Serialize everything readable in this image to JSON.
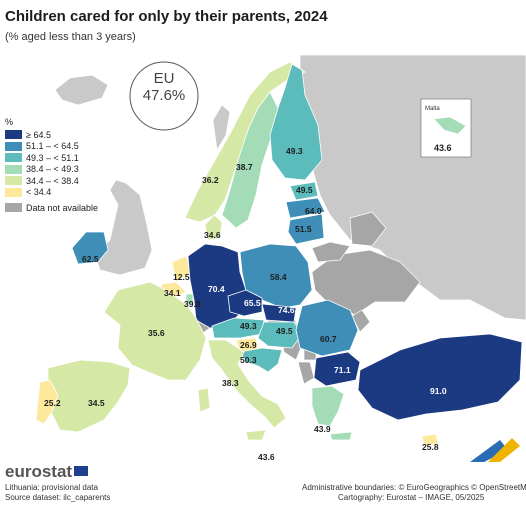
{
  "header": {
    "title": "Children cared for only by their parents, 2024",
    "subtitle": "(% aged less than 3 years)"
  },
  "eu": {
    "label": "EU",
    "value": "47.6%"
  },
  "legend": {
    "unit": "%",
    "classes": [
      {
        "label": "≥ 64.5",
        "color": "#1c3a82"
      },
      {
        "label": "51.1 – < 64.5",
        "color": "#3f8eb8"
      },
      {
        "label": "49.3 – < 51.1",
        "color": "#5cbcbc"
      },
      {
        "label": "38.4 – < 49.3",
        "color": "#a3dcb6"
      },
      {
        "label": "34.4 – < 38.4",
        "color": "#d6e8a6"
      },
      {
        "label": "< 34.4",
        "color": "#fde89c"
      }
    ],
    "not_available": {
      "label": "Data not available",
      "color": "#a6a6a6"
    }
  },
  "countries": [
    {
      "name": "Finland",
      "value": "49.3"
    },
    {
      "name": "Sweden",
      "value": "38.7"
    },
    {
      "name": "Norway",
      "value": "36.2"
    },
    {
      "name": "Estonia",
      "value": "49.5"
    },
    {
      "name": "Latvia",
      "value": "64.0"
    },
    {
      "name": "Lithuania",
      "value": "51.5"
    },
    {
      "name": "Denmark",
      "value": "34.6"
    },
    {
      "name": "Ireland",
      "value": "62.5"
    },
    {
      "name": "Netherlands",
      "value": "12.5"
    },
    {
      "name": "Belgium",
      "value": "34.1"
    },
    {
      "name": "Luxembourg",
      "value": "39.8"
    },
    {
      "name": "Germany",
      "value": "70.4"
    },
    {
      "name": "Poland",
      "value": "58.4"
    },
    {
      "name": "Czechia",
      "value": "65.5"
    },
    {
      "name": "Slovakia",
      "value": "74.6"
    },
    {
      "name": "Austria",
      "value": "49.3"
    },
    {
      "name": "Hungary",
      "value": "49.5"
    },
    {
      "name": "Slovenia",
      "value": "26.9"
    },
    {
      "name": "Croatia",
      "value": "50.3"
    },
    {
      "name": "Romania",
      "value": "60.7"
    },
    {
      "name": "Bulgaria",
      "value": "71.1"
    },
    {
      "name": "France",
      "value": "35.6"
    },
    {
      "name": "Spain",
      "value": "34.5"
    },
    {
      "name": "Portugal",
      "value": "25.2"
    },
    {
      "name": "Italy",
      "value": "38.3"
    },
    {
      "name": "Greece",
      "value": "43.9"
    },
    {
      "name": "Cyprus",
      "value": "25.8"
    },
    {
      "name": "Malta",
      "value": "43.6"
    },
    {
      "name": "Türkiye",
      "value": "91.0"
    }
  ],
  "inset": {
    "title": "Malta",
    "value": "43.6"
  },
  "malta_main_label": "43.6",
  "brand": "eurostat",
  "notes": [
    "Lithuania: provisional data",
    "Source dataset: ilc_caparents"
  ],
  "credits": [
    "Administrative boundaries: © EuroGeographics © OpenStreetMap",
    "Cartography: Eurostat – IMAGE, 05/2025"
  ]
}
